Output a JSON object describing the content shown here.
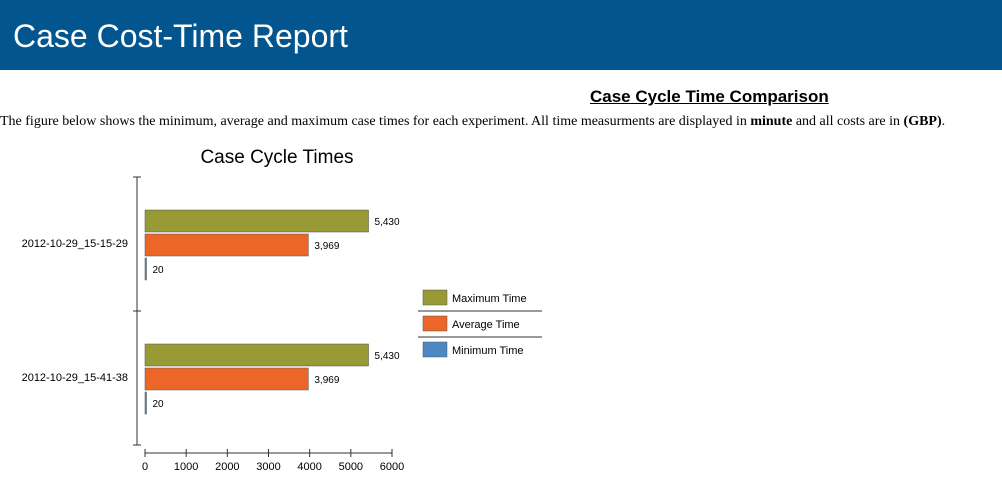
{
  "header": {
    "title": "Case Cost-Time Report"
  },
  "section": {
    "title": "Case Cycle Time Comparison",
    "description_prefix": "The figure below shows the minimum, average and maximum case times for each experiment. All time measurments are displayed in ",
    "description_unit": "minute",
    "description_middle": " and all costs are in ",
    "description_currency": "(GBP)",
    "description_suffix": "."
  },
  "colors": {
    "header_bg": "#02558f",
    "maximum": "#989a35",
    "average": "#ec6628",
    "minimum": "#4c88c3"
  },
  "chart_data": {
    "type": "bar",
    "orientation": "horizontal",
    "title": "Case Cycle Times",
    "categories": [
      "2012-10-29_15-15-29",
      "2012-10-29_15-41-38"
    ],
    "series": [
      {
        "name": "Maximum Time",
        "values": [
          5430,
          5430
        ],
        "labels": [
          "5,430",
          "5,430"
        ],
        "color": "#989a35"
      },
      {
        "name": "Average Time",
        "values": [
          3969,
          3969
        ],
        "labels": [
          "3,969",
          "3,969"
        ],
        "color": "#ec6628"
      },
      {
        "name": "Minimum Time",
        "values": [
          20,
          20
        ],
        "labels": [
          "20",
          "20"
        ],
        "color": "#4c88c3"
      }
    ],
    "x_ticks": [
      0,
      1000,
      2000,
      3000,
      4000,
      5000,
      6000
    ],
    "x_tick_labels": [
      "0",
      "1000",
      "2000",
      "3000",
      "4000",
      "5000",
      "6000"
    ],
    "xlim": [
      0,
      6000
    ],
    "legend_position": "right",
    "grid": false
  }
}
